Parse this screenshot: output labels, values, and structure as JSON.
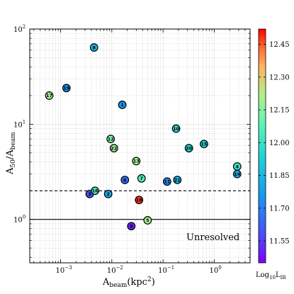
{
  "chart_data": {
    "type": "scatter",
    "x_scale": "log",
    "y_scale": "log",
    "xlim": [
      0.00025,
      5
    ],
    "ylim": [
      0.35,
      100
    ],
    "grid": true,
    "xticks": [
      {
        "value": 0.001,
        "base": "10",
        "exp": "−3"
      },
      {
        "value": 0.01,
        "base": "10",
        "exp": "−2"
      },
      {
        "value": 0.1,
        "base": "10",
        "exp": "−1"
      },
      {
        "value": 1,
        "base": "10",
        "exp": "0"
      }
    ],
    "yticks": [
      {
        "value": 1,
        "base": "10",
        "exp": "0"
      },
      {
        "value": 10,
        "base": "10",
        "exp": "1"
      },
      {
        "value": 100,
        "base": "10",
        "exp": "2"
      }
    ],
    "xlabel": {
      "main": "A",
      "sub": "beam",
      "rest": "(kpc",
      "sup": "2",
      "close": ")"
    },
    "ylabel": {
      "a": "A",
      "a_sub": "50",
      "slash": "/A",
      "b_sub": "beam"
    },
    "hlines": [
      {
        "y": 2.0,
        "style": "dashed"
      },
      {
        "y": 1.0,
        "style": "solid"
      }
    ],
    "annotation": "Unresolved",
    "colorbar": {
      "min": 11.45,
      "max": 12.52,
      "ticks": [
        "11.55",
        "11.70",
        "11.85",
        "12.00",
        "12.15",
        "12.30",
        "12.45"
      ],
      "tick_values": [
        11.55,
        11.7,
        11.85,
        12.0,
        12.15,
        12.3,
        12.45
      ],
      "label_main": "Log",
      "label_sub": "10",
      "label_rest": "L",
      "label_sub2": "IR"
    },
    "points": [
      {
        "id": "1",
        "x": 0.016,
        "y": 16.0,
        "c": 11.75
      },
      {
        "id": "2",
        "x": 0.0085,
        "y": 1.85,
        "c": 11.8
      },
      {
        "id": "3",
        "x": 0.0037,
        "y": 1.85,
        "c": 11.57
      },
      {
        "id": "4",
        "x": 2.8,
        "y": 3.6,
        "c": 12.0
      },
      {
        "id": "5",
        "x": 0.05,
        "y": 0.98,
        "c": 12.2
      },
      {
        "id": "6",
        "x": 0.018,
        "y": 2.6,
        "c": 11.65
      },
      {
        "id": "7",
        "x": 0.038,
        "y": 2.7,
        "c": 12.05
      },
      {
        "id": "8",
        "x": 0.0045,
        "y": 64.0,
        "c": 11.85
      },
      {
        "id": "9",
        "x": 0.024,
        "y": 0.85,
        "c": 11.5
      },
      {
        "id": "10",
        "x": 0.18,
        "y": 9.0,
        "c": 11.95
      },
      {
        "id": "11",
        "x": 0.12,
        "y": 2.5,
        "c": 11.72
      },
      {
        "id": "12",
        "x": 0.0095,
        "y": 7.0,
        "c": 12.15
      },
      {
        "id": "13",
        "x": 0.03,
        "y": 4.1,
        "c": 12.2
      },
      {
        "id": "14",
        "x": 2.8,
        "y": 3.0,
        "c": 11.8
      },
      {
        "id": "15",
        "x": 0.63,
        "y": 6.2,
        "c": 11.93
      },
      {
        "id": "16",
        "x": 0.0047,
        "y": 2.0,
        "c": 12.05
      },
      {
        "id": "17",
        "x": 0.0006,
        "y": 20.0,
        "c": 12.2
      },
      {
        "id": "18",
        "x": 0.034,
        "y": 1.6,
        "c": 12.48
      },
      {
        "id": "19",
        "x": 0.0013,
        "y": 24.0,
        "c": 11.72
      },
      {
        "id": "20",
        "x": 0.32,
        "y": 5.6,
        "c": 11.95
      },
      {
        "id": "21",
        "x": 0.19,
        "y": 2.6,
        "c": 11.82
      },
      {
        "id": "22",
        "x": 0.011,
        "y": 5.6,
        "c": 12.18
      }
    ]
  }
}
